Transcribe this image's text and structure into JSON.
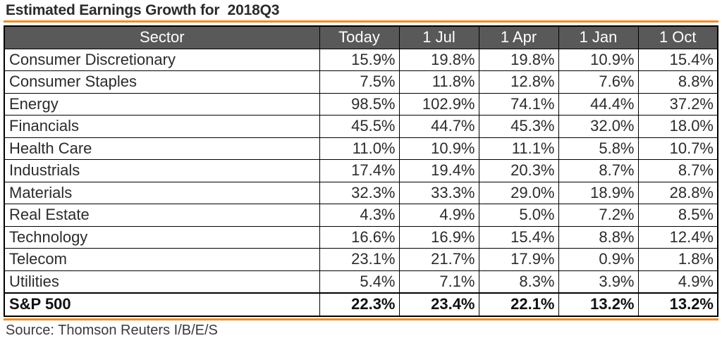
{
  "title": "Estimated Earnings Growth for  2018Q3",
  "colors": {
    "accent_rule": "#f28c1e",
    "header_background": "#595959",
    "header_text": "#ffffff"
  },
  "table": {
    "headers": [
      "Sector",
      "Today",
      "1 Jul",
      "1 Apr",
      "1 Jan",
      "1 Oct"
    ],
    "rows": [
      {
        "sector": "Consumer Discretionary",
        "values": [
          "15.9%",
          "19.8%",
          "19.8%",
          "10.9%",
          "15.4%"
        ]
      },
      {
        "sector": "Consumer Staples",
        "values": [
          "7.5%",
          "11.8%",
          "12.8%",
          "7.6%",
          "8.8%"
        ]
      },
      {
        "sector": "Energy",
        "values": [
          "98.5%",
          "102.9%",
          "74.1%",
          "44.4%",
          "37.2%"
        ]
      },
      {
        "sector": "Financials",
        "values": [
          "45.5%",
          "44.7%",
          "45.3%",
          "32.0%",
          "18.0%"
        ]
      },
      {
        "sector": "Health Care",
        "values": [
          "11.0%",
          "10.9%",
          "11.1%",
          "5.8%",
          "10.7%"
        ]
      },
      {
        "sector": "Industrials",
        "values": [
          "17.4%",
          "19.4%",
          "20.3%",
          "8.7%",
          "8.7%"
        ]
      },
      {
        "sector": "Materials",
        "values": [
          "32.3%",
          "33.3%",
          "29.0%",
          "18.9%",
          "28.8%"
        ]
      },
      {
        "sector": "Real Estate",
        "values": [
          "4.3%",
          "4.9%",
          "5.0%",
          "7.2%",
          "8.5%"
        ]
      },
      {
        "sector": "Technology",
        "values": [
          "16.6%",
          "16.9%",
          "15.4%",
          "8.8%",
          "12.4%"
        ]
      },
      {
        "sector": "Telecom",
        "values": [
          "23.1%",
          "21.7%",
          "17.9%",
          "0.9%",
          "1.8%"
        ]
      },
      {
        "sector": "Utilities",
        "values": [
          "5.4%",
          "7.1%",
          "8.3%",
          "3.9%",
          "4.9%"
        ]
      }
    ],
    "total": {
      "sector": "S&P 500",
      "values": [
        "22.3%",
        "23.4%",
        "22.1%",
        "13.2%",
        "13.2%"
      ]
    }
  },
  "source": "Source: Thomson Reuters I/B/E/S"
}
